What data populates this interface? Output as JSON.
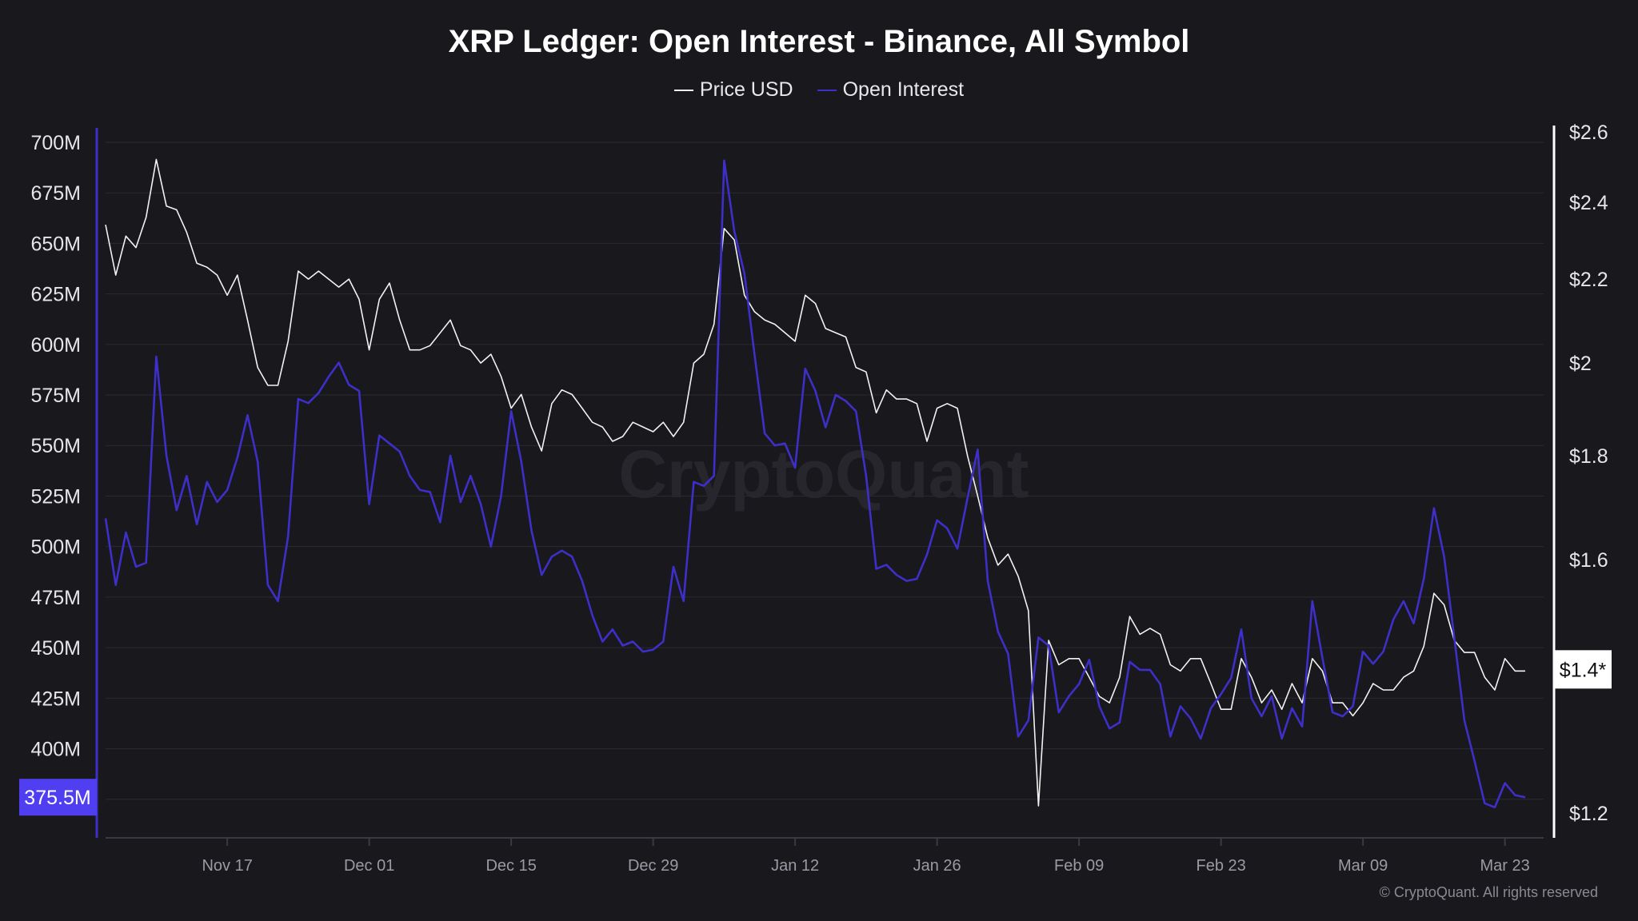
{
  "chart_data": {
    "type": "line",
    "title": "XRP Ledger: Open Interest - Binance, All Symbol",
    "watermark": "CryptoQuant",
    "copyright": "© CryptoQuant. All rights reserved",
    "legend_placement": "top-center",
    "grid": true,
    "x_ticks": [
      "Nov 17",
      "Dec 01",
      "Dec 15",
      "Dec 29",
      "Jan 12",
      "Jan 26",
      "Feb 09",
      "Feb 23",
      "Mar 09",
      "Mar 23"
    ],
    "x_tick_dates": [
      "2024-11-17",
      "2024-12-01",
      "2024-12-15",
      "2024-12-29",
      "2025-01-12",
      "2025-01-26",
      "2025-02-09",
      "2025-02-23",
      "2025-03-09",
      "2025-03-23"
    ],
    "left_axis": {
      "ticks": [
        "700M",
        "675M",
        "650M",
        "625M",
        "600M",
        "575M",
        "550M",
        "525M",
        "500M",
        "475M",
        "450M",
        "425M",
        "400M"
      ],
      "tick_values": [
        700,
        675,
        650,
        625,
        600,
        575,
        550,
        525,
        500,
        475,
        450,
        425,
        400
      ],
      "ylim": [
        375,
        700
      ],
      "unit": "M",
      "current_label": "375.5M"
    },
    "right_axis": {
      "scale": "log",
      "ticks": [
        "$2.6",
        "$2.4",
        "$2.2",
        "$2",
        "$1.8",
        "$1.6",
        "$1.2"
      ],
      "tick_values": [
        2.6,
        2.4,
        2.2,
        2.0,
        1.8,
        1.6,
        1.2
      ],
      "ylim": [
        1.2,
        2.6
      ],
      "current_label": "$1.4*"
    },
    "x": [
      "2024-11-05",
      "2024-11-06",
      "2024-11-07",
      "2024-11-08",
      "2024-11-09",
      "2024-11-10",
      "2024-11-11",
      "2024-11-12",
      "2024-11-13",
      "2024-11-14",
      "2024-11-15",
      "2024-11-16",
      "2024-11-17",
      "2024-11-18",
      "2024-11-19",
      "2024-11-20",
      "2024-11-21",
      "2024-11-22",
      "2024-11-23",
      "2024-11-24",
      "2024-11-25",
      "2024-11-26",
      "2024-11-27",
      "2024-11-28",
      "2024-11-29",
      "2024-11-30",
      "2024-12-01",
      "2024-12-02",
      "2024-12-03",
      "2024-12-04",
      "2024-12-05",
      "2024-12-06",
      "2024-12-07",
      "2024-12-08",
      "2024-12-09",
      "2024-12-10",
      "2024-12-11",
      "2024-12-12",
      "2024-12-13",
      "2024-12-14",
      "2024-12-15",
      "2024-12-16",
      "2024-12-17",
      "2024-12-18",
      "2024-12-19",
      "2024-12-20",
      "2024-12-21",
      "2024-12-22",
      "2024-12-23",
      "2024-12-24",
      "2024-12-25",
      "2024-12-26",
      "2024-12-27",
      "2024-12-28",
      "2024-12-29",
      "2024-12-30",
      "2024-12-31",
      "2025-01-01",
      "2025-01-02",
      "2025-01-03",
      "2025-01-04",
      "2025-01-05",
      "2025-01-06",
      "2025-01-07",
      "2025-01-08",
      "2025-01-09",
      "2025-01-10",
      "2025-01-11",
      "2025-01-12",
      "2025-01-13",
      "2025-01-14",
      "2025-01-15",
      "2025-01-16",
      "2025-01-17",
      "2025-01-18",
      "2025-01-19",
      "2025-01-20",
      "2025-01-21",
      "2025-01-22",
      "2025-01-23",
      "2025-01-24",
      "2025-01-25",
      "2025-01-26",
      "2025-01-27",
      "2025-01-28",
      "2025-01-29",
      "2025-01-30",
      "2025-01-31",
      "2025-02-01",
      "2025-02-02",
      "2025-02-03",
      "2025-02-04",
      "2025-02-05",
      "2025-02-06",
      "2025-02-07",
      "2025-02-08",
      "2025-02-09",
      "2025-02-10",
      "2025-02-11",
      "2025-02-12",
      "2025-02-13",
      "2025-02-14",
      "2025-02-15",
      "2025-02-16",
      "2025-02-17",
      "2025-02-18",
      "2025-02-19",
      "2025-02-20",
      "2025-02-21",
      "2025-02-22",
      "2025-02-23",
      "2025-02-24",
      "2025-02-25",
      "2025-02-26",
      "2025-02-27",
      "2025-02-28",
      "2025-03-01",
      "2025-03-02",
      "2025-03-03",
      "2025-03-04",
      "2025-03-05",
      "2025-03-06",
      "2025-03-07",
      "2025-03-08",
      "2025-03-09",
      "2025-03-10",
      "2025-03-11",
      "2025-03-12",
      "2025-03-13",
      "2025-03-14",
      "2025-03-15",
      "2025-03-16",
      "2025-03-17",
      "2025-03-18",
      "2025-03-19",
      "2025-03-20",
      "2025-03-21",
      "2025-03-22",
      "2025-03-23",
      "2025-03-24",
      "2025-03-25"
    ],
    "series": [
      {
        "name": "Price USD",
        "axis": "right",
        "color": "#f2f2f2",
        "values": [
          2.34,
          2.21,
          2.31,
          2.28,
          2.36,
          2.52,
          2.39,
          2.38,
          2.32,
          2.24,
          2.23,
          2.21,
          2.16,
          2.21,
          2.1,
          1.99,
          1.95,
          1.95,
          2.05,
          2.22,
          2.2,
          2.22,
          2.2,
          2.18,
          2.2,
          2.15,
          2.03,
          2.15,
          2.19,
          2.1,
          2.03,
          2.03,
          2.04,
          2.07,
          2.1,
          2.04,
          2.03,
          2.0,
          2.02,
          1.97,
          1.9,
          1.93,
          1.86,
          1.81,
          1.91,
          1.94,
          1.93,
          1.9,
          1.87,
          1.86,
          1.83,
          1.84,
          1.87,
          1.86,
          1.85,
          1.87,
          1.84,
          1.87,
          2.0,
          2.02,
          2.09,
          2.33,
          2.3,
          2.16,
          2.12,
          2.1,
          2.09,
          2.07,
          2.05,
          2.16,
          2.14,
          2.08,
          2.07,
          2.06,
          1.99,
          1.98,
          1.89,
          1.94,
          1.92,
          1.92,
          1.91,
          1.83,
          1.9,
          1.91,
          1.9,
          1.8,
          1.72,
          1.64,
          1.59,
          1.61,
          1.57,
          1.51,
          1.21,
          1.46,
          1.42,
          1.43,
          1.43,
          1.4,
          1.37,
          1.36,
          1.4,
          1.5,
          1.47,
          1.48,
          1.47,
          1.42,
          1.41,
          1.43,
          1.43,
          1.39,
          1.35,
          1.35,
          1.43,
          1.4,
          1.36,
          1.38,
          1.35,
          1.39,
          1.36,
          1.43,
          1.41,
          1.36,
          1.36,
          1.34,
          1.36,
          1.39,
          1.38,
          1.38,
          1.4,
          1.41,
          1.45,
          1.54,
          1.52,
          1.46,
          1.44,
          1.44,
          1.4,
          1.38,
          1.43,
          1.41,
          1.41
        ]
      },
      {
        "name": "Open Interest",
        "axis": "left",
        "color": "#3d2fc7",
        "values": [
          514,
          481,
          507,
          490,
          492,
          594,
          545,
          518,
          535,
          511,
          532,
          522,
          528,
          544,
          565,
          542,
          481,
          473,
          505,
          573,
          571,
          576,
          584,
          591,
          580,
          577,
          521,
          555,
          551,
          547,
          535,
          528,
          527,
          512,
          545,
          522,
          535,
          521,
          500,
          525,
          567,
          542,
          508,
          486,
          495,
          498,
          495,
          483,
          466,
          453,
          459,
          451,
          453,
          448,
          449,
          453,
          490,
          473,
          532,
          530,
          535,
          691,
          656,
          635,
          595,
          556,
          550,
          551,
          539,
          588,
          577,
          559,
          575,
          572,
          567,
          535,
          489,
          491,
          486,
          483,
          484,
          496,
          513,
          509,
          499,
          524,
          548,
          483,
          458,
          447,
          406,
          414,
          455,
          451,
          418,
          426,
          432,
          444,
          421,
          410,
          413,
          443,
          439,
          439,
          432,
          406,
          421,
          415,
          405,
          420,
          427,
          435,
          459,
          425,
          416,
          426,
          405,
          420,
          411,
          473,
          445,
          418,
          416,
          421,
          448,
          442,
          448,
          464,
          473,
          462,
          484,
          519,
          495,
          455,
          414,
          394,
          373,
          371,
          383,
          377,
          376
        ]
      }
    ]
  },
  "colors": {
    "background": "#18181d",
    "grid": "#2a2a31",
    "oi_flag": "#4f3ff0",
    "price_flag": "#ffffff"
  }
}
